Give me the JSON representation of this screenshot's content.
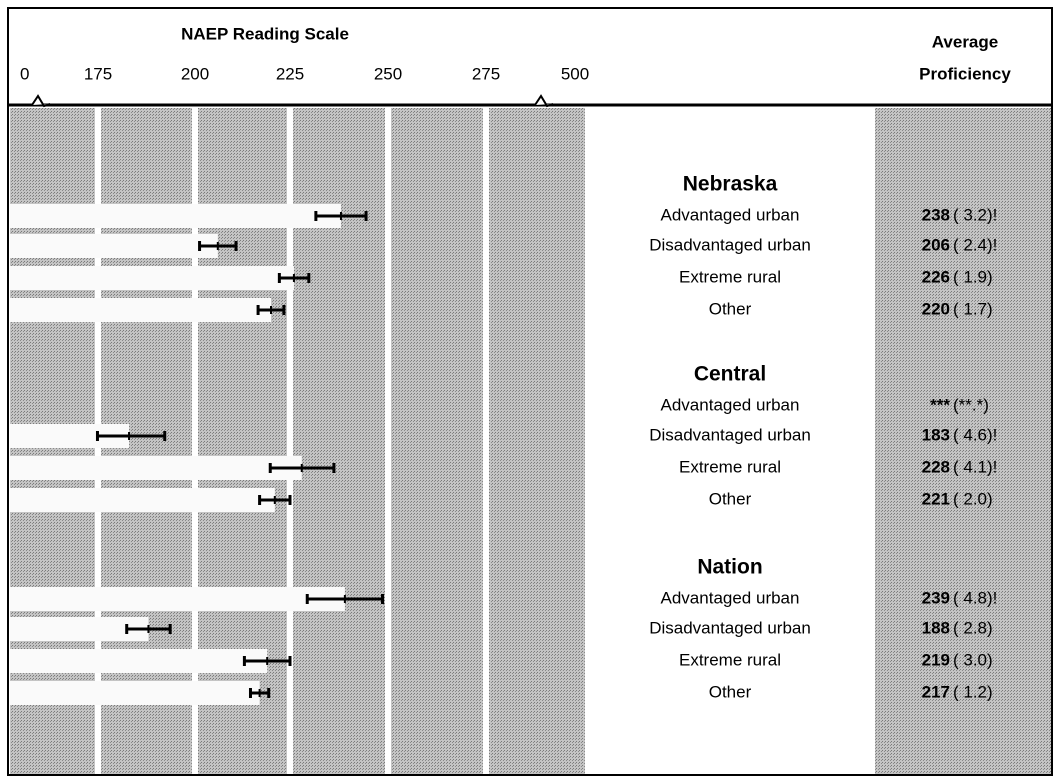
{
  "chart_data": {
    "type": "bar",
    "title": "NAEP Reading Scale",
    "value_header": [
      "Average",
      "Proficiency"
    ],
    "xticks": [
      0,
      175,
      200,
      225,
      250,
      275,
      500
    ],
    "xlim": [
      0,
      500
    ],
    "grid": true,
    "groups": [
      {
        "name": "Nebraska",
        "categories": [
          "Advantaged urban",
          "Disadvantaged urban",
          "Extreme rural",
          "Other"
        ],
        "values": [
          238,
          206,
          226,
          220
        ],
        "errors": [
          3.2,
          2.4,
          1.9,
          1.7
        ],
        "error_labels": [
          "( 3.2)!",
          "( 2.4)!",
          "( 1.9)",
          "( 1.7)"
        ]
      },
      {
        "name": "Central",
        "categories": [
          "Advantaged urban",
          "Disadvantaged urban",
          "Extreme rural",
          "Other"
        ],
        "values": [
          null,
          183,
          228,
          221
        ],
        "value_labels": [
          "***",
          null,
          null,
          null
        ],
        "errors": [
          null,
          4.6,
          4.1,
          2.0
        ],
        "error_labels": [
          "(**.*)",
          "( 4.6)!",
          "( 4.1)!",
          "( 2.0)"
        ]
      },
      {
        "name": "Nation",
        "categories": [
          "Advantaged urban",
          "Disadvantaged urban",
          "Extreme rural",
          "Other"
        ],
        "values": [
          239,
          188,
          219,
          217
        ],
        "errors": [
          4.8,
          2.8,
          3.0,
          1.2
        ],
        "error_labels": [
          "( 4.8)!",
          "( 2.8)",
          "( 3.0)",
          "( 1.2)"
        ]
      }
    ]
  }
}
